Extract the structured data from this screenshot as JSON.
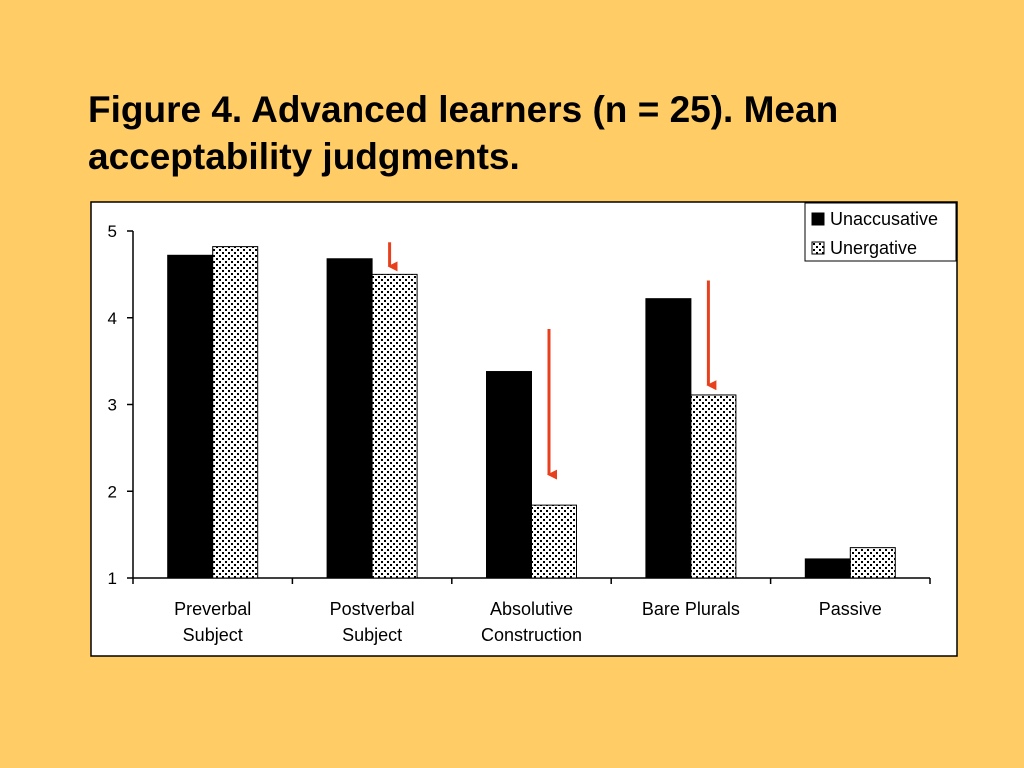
{
  "slide": {
    "title_lines": [
      "Figure 4. Advanced learners (n = 25). Mean",
      "acceptability judgments."
    ]
  },
  "colors": {
    "background": "#FFCC66",
    "plot_background": "#FFFFFF",
    "unaccusative": "#000000",
    "unergative_fill": "#FFFFFF",
    "unergative_pattern": "#000000",
    "arrow": "#E8401C"
  },
  "chart_data": {
    "type": "bar",
    "title": "Figure 4. Advanced learners (n = 25). Mean acceptability judgments.",
    "categories": [
      [
        "Preverbal",
        "Subject"
      ],
      [
        "Postverbal",
        "Subject"
      ],
      [
        "Absolutive",
        "Construction"
      ],
      [
        "Bare Plurals"
      ],
      [
        "Passive"
      ]
    ],
    "series": [
      {
        "name": "Unaccusative",
        "values": [
          4.72,
          4.68,
          3.38,
          4.22,
          1.22
        ],
        "fill": "solid-black"
      },
      {
        "name": "Unergative",
        "values": [
          4.82,
          4.5,
          1.84,
          3.11,
          1.35
        ],
        "fill": "dotted-pattern"
      }
    ],
    "ylim": [
      1,
      5
    ],
    "yticks": [
      1,
      2,
      3,
      4,
      5
    ],
    "xlabel": "",
    "ylabel": "",
    "grid": false,
    "legend_position": "top-right",
    "annotations": [
      {
        "type": "arrow",
        "category_index": 1,
        "series": "Unergative",
        "y_from": 4.87,
        "y_to": 4.5
      },
      {
        "type": "arrow",
        "category_index": 2,
        "series": "Unergative",
        "y_from": 3.87,
        "y_to": 2.1
      },
      {
        "type": "arrow",
        "category_index": 3,
        "series": "Unergative",
        "y_from": 4.43,
        "y_to": 3.13
      }
    ]
  }
}
